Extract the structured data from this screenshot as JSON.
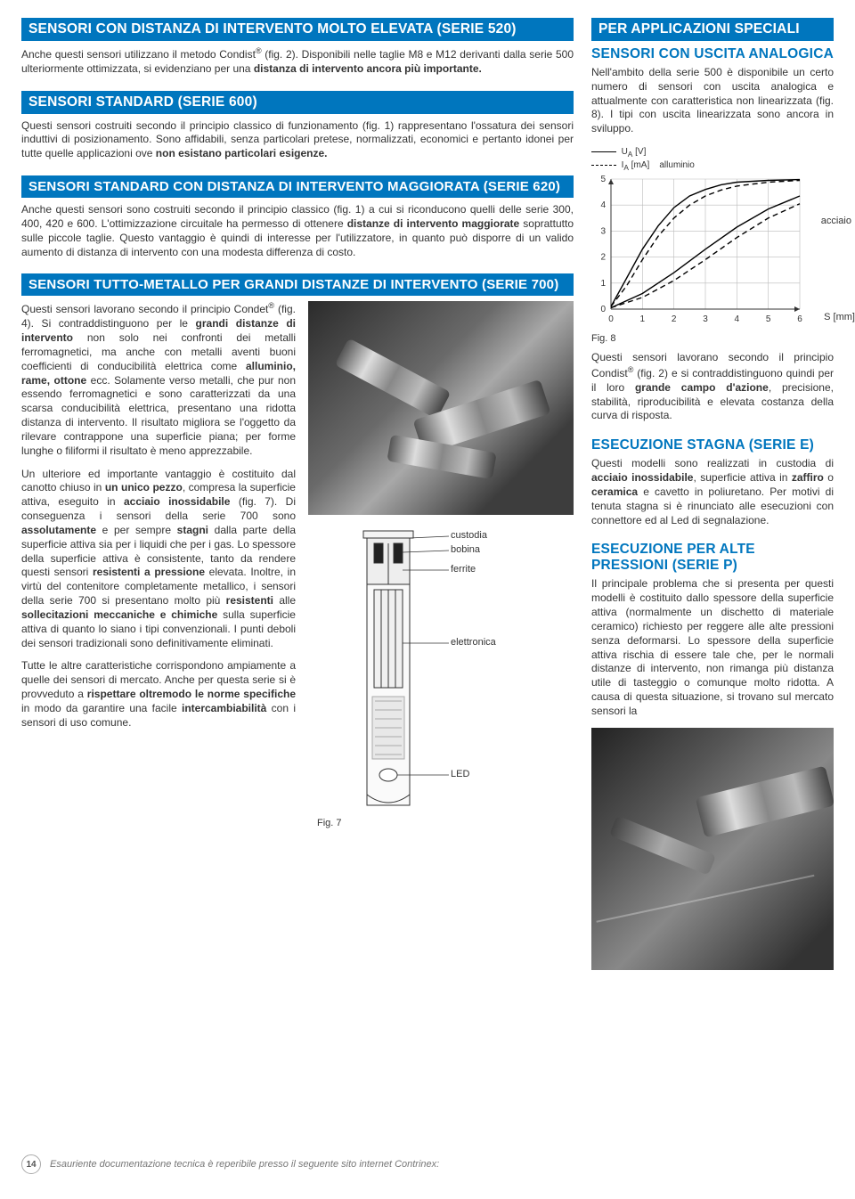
{
  "left": {
    "s520": {
      "band": "SENSORI CON DISTANZA DI INTERVENTO MOLTO ELEVATA (SERIE 520)",
      "p1a": "Anche questi sensori utilizzano il metodo Condist",
      "p1b": " (fig. 2). Disponibili nelle taglie M8 e M12 derivanti dalla serie 500 ulteriormente ottimizzata, si evidenziano per una ",
      "p1bold": "distanza di intervento ancora più importante.",
      "reg": "®"
    },
    "s600": {
      "band": "SENSORI STANDARD (SERIE 600)",
      "p1": "Questi sensori costruiti secondo il principio classico di funzionamento (fig. 1) rappresentano l'ossatura dei sensori induttivi di posizionamento. Sono affidabili, senza particolari pretese, normalizzati, economici e pertanto idonei per tutte quelle applicazioni ove ",
      "p1bold": "non esistano particolari esigenze."
    },
    "s620": {
      "band": "SENSORI STANDARD CON DISTANZA DI INTERVENTO MAGGIORATA (SERIE 620)",
      "p1": "Anche questi sensori sono costruiti secondo il principio classico (fig. 1) a cui si riconducono quelli delle serie 300, 400, 420 e 600. L'ottimizzazione circuitale ha permesso di ottenere ",
      "p1bold": "distanze di intervento maggiorate",
      "p1b": " soprattutto sulle piccole taglie. Questo vantaggio è quindi di interesse per l'utilizzatore, in quanto può disporre di un valido aumento di distanza di intervento con una modesta differenza di costo."
    },
    "s700": {
      "band": "SENSORI TUTTO-METALLO PER GRANDI DISTANZE DI INTERVENTO (SERIE 700)",
      "p1a": "Questi sensori lavorano secondo il principio Condet",
      "p1b": " (fig. 4). Si contraddistinguono per le ",
      "p1bold1": "grandi distanze di intervento",
      "p1c": " non solo nei confronti dei metalli ferromagnetici, ma anche con metalli aventi buoni coefficienti di conducibilità elettrica come ",
      "p1bold2": "alluminio, rame, ottone",
      "p1d": " ecc. Solamente verso metalli, che pur non essendo ferromagnetici e sono caratterizzati da una scarsa conducibilità elettrica, presentano una ridotta distanza di intervento. Il risultato migliora se l'oggetto da rilevare contrappone una superficie piana; per forme lunghe o filiformi il risultato è meno apprezzabile.",
      "p2a": "Un ulteriore ed importante vantaggio è costituito dal canotto chiuso in ",
      "p2bold1": "un unico pezzo",
      "p2b": ", compresa la superficie attiva, eseguito in ",
      "p2bold2": "acciaio inossidabile",
      "p2c": " (fig. 7). Di conseguenza i sensori della serie 700 sono ",
      "p2bold3": "assolutamente",
      "p2d": " e per sempre ",
      "p2bold4": "stagni",
      "p2e": " dalla parte della superficie attiva sia per i liquidi che per i gas. Lo spessore della superficie attiva è consistente, tanto da rendere questi sensori ",
      "p2bold5": "resistenti a pressione",
      "p2f": " elevata. Inoltre, in virtù del contenitore completamente metallico, i sensori della serie 700 si presentano molto più ",
      "p2bold6": "resistenti",
      "p2g": " alle ",
      "p2bold7": "sollecitazioni meccaniche e chimiche",
      "p2h": " sulla superficie attiva di quanto lo siano i tipi convenzionali. I punti deboli dei sensori tradizionali sono definitivamente eliminati.",
      "p3a": "Tutte le altre caratteristiche corrispondono ampiamente a quelle dei sensori di mercato. Anche per questa serie si è provveduto a ",
      "p3bold1": "rispettare oltremodo le norme specifiche",
      "p3b": " in modo da garantire una facile ",
      "p3bold2": "intercambiabilità",
      "p3c": " con i sensori di uso comune.",
      "reg": "®",
      "fig7": "Fig. 7",
      "labels": {
        "custodia": "custodia",
        "bobina": "bobina",
        "ferrite": "ferrite",
        "elettronica": "elettronica",
        "led": "LED"
      }
    }
  },
  "right": {
    "bandTop": "PER APPLICAZIONI SPECIALI",
    "analog": {
      "h": "SENSORI CON USCITA ANALOGICA",
      "p1": "Nell'ambito della serie 500 è disponibile un certo numero di sensori con uscita analogica e attualmente con caratteristica non linearizzata (fig. 8). I tipi con uscita linearizzata sono ancora in sviluppo.",
      "chart": {
        "xlim": [
          0,
          6
        ],
        "ylim": [
          0,
          5
        ],
        "xticks": [
          0,
          1,
          2,
          3,
          4,
          5,
          6
        ],
        "yticks": [
          0,
          1,
          2,
          3,
          4,
          5
        ],
        "xlabel": "S [mm]",
        "legendUA": "U",
        "legendUAsub": "A",
        "legendUAunit": " [V]",
        "legendIA": "I",
        "legendIAsub": "A",
        "legendIAunit": " [mA]",
        "series": {
          "al_solid": {
            "label": "alluminio",
            "color": "#000",
            "dash": "none",
            "pts": [
              [
                0,
                0.1
              ],
              [
                0.5,
                1.2
              ],
              [
                1,
                2.3
              ],
              [
                1.5,
                3.2
              ],
              [
                2,
                3.9
              ],
              [
                2.5,
                4.35
              ],
              [
                3,
                4.6
              ],
              [
                3.5,
                4.78
              ],
              [
                4,
                4.88
              ],
              [
                5,
                4.95
              ],
              [
                6,
                4.98
              ]
            ]
          },
          "al_dash": {
            "color": "#000",
            "dash": "6,4",
            "pts": [
              [
                0,
                0.1
              ],
              [
                0.5,
                0.9
              ],
              [
                1,
                1.9
              ],
              [
                1.5,
                2.8
              ],
              [
                2,
                3.5
              ],
              [
                2.5,
                4.0
              ],
              [
                3,
                4.35
              ],
              [
                3.5,
                4.58
              ],
              [
                4,
                4.73
              ],
              [
                5,
                4.88
              ],
              [
                6,
                4.95
              ]
            ]
          },
          "st_solid": {
            "label": "acciaio",
            "color": "#000",
            "dash": "none",
            "pts": [
              [
                0,
                0.05
              ],
              [
                1,
                0.6
              ],
              [
                2,
                1.4
              ],
              [
                3,
                2.3
              ],
              [
                4,
                3.15
              ],
              [
                5,
                3.85
              ],
              [
                6,
                4.35
              ]
            ]
          },
          "st_dash": {
            "color": "#000",
            "dash": "6,4",
            "pts": [
              [
                0,
                0.05
              ],
              [
                1,
                0.45
              ],
              [
                2,
                1.1
              ],
              [
                3,
                1.9
              ],
              [
                4,
                2.75
              ],
              [
                5,
                3.5
              ],
              [
                6,
                4.05
              ]
            ]
          }
        },
        "grid_color": "#bbb",
        "axis_color": "#333"
      },
      "figcap": "Fig. 8",
      "p2a": "Questi sensori lavorano secondo il principio Condist",
      "reg": "®",
      "p2b": " (fig. 2) e si contraddistinguono quindi per il loro ",
      "p2bold": "grande campo d'azione",
      "p2c": ", precisione, stabilità, riproducibilità e elevata costanza della curva di risposta."
    },
    "stagna": {
      "h": "ESECUZIONE STAGNA (SERIE E)",
      "p1a": "Questi modelli sono realizzati in custodia di ",
      "p1bold1": "acciaio inossidabile",
      "p1b": ", superficie attiva in ",
      "p1bold2": "zaffiro",
      "p1c": " o ",
      "p1bold3": "ceramica",
      "p1d": " e cavetto in poliuretano. Per motivi di tenuta stagna si è rinunciato alle esecuzioni con connettore ed al Led di segnalazione."
    },
    "press": {
      "h": "ESECUZIONE PER ALTE PRESSIONI (SERIE P)",
      "p1": "Il principale problema che si presenta per questi modelli è costituito dallo spessore della superficie attiva (normalmente un dischetto di materiale ceramico) richiesto per reggere alle alte pressioni senza deformarsi. Lo spessore della superficie attiva rischia di essere tale che, per le normali distanze di intervento, non rimanga più distanza utile di tasteggio o comunque molto ridotta. A causa di questa situazione, si trovano sul mercato sensori la"
    }
  },
  "footer": {
    "page": "14",
    "text": "Esauriente documentazione tecnica è reperibile presso il seguente sito internet Contrinex:"
  }
}
